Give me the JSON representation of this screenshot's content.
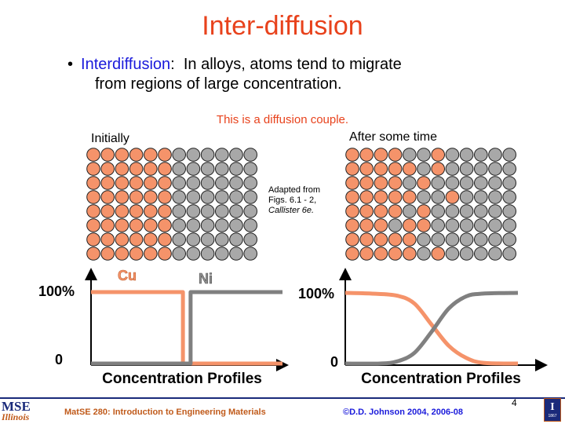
{
  "title": "Inter-diffusion",
  "bullet": {
    "marker": "•",
    "term": "Interdiffusion",
    "colon": ":",
    "text_line1": "In alloys, atoms tend to migrate",
    "text_line2": "from regions of large concentration."
  },
  "diffusion_note": "This is a diffusion couple.",
  "lattice_initial": {
    "label": "Initially",
    "colors": {
      "cu": "#f5936a",
      "ni": "#a8a8a8"
    },
    "rows": [
      "CCCCCCNNNNNN",
      "CCCCCCNNNNNN",
      "CCCCCCNNNNNN",
      "CCCCCCNNNNNN",
      "CCCCCCNNNNNN",
      "CCCCCCNNNNNN",
      "CCCCCCNNNNNN",
      "CCCCCCNNNNNN"
    ]
  },
  "lattice_after": {
    "label": "After some time",
    "rows": [
      "CCCCNNCNNNNN",
      "CCCCCNCNNNNN",
      "CCCCNCNNNNNN",
      "CCCCCNNCNNNN",
      "CCCCNCNNNNNN",
      "CCCNCCNNNNNN",
      "CCCCCNNNNNNN",
      "CCCCCNCNNNNN"
    ]
  },
  "attribution": {
    "line1": "Adapted from",
    "line2": "Figs. 6.1 - 2,",
    "line3": "Callister 6e."
  },
  "chart_data": [
    {
      "type": "line",
      "title": "Concentration Profiles",
      "y_tick_labels": [
        "100%",
        "0"
      ],
      "series": [
        {
          "name": "Cu",
          "color": "#f5936a",
          "x": [
            0,
            0.48,
            0.48,
            1
          ],
          "y": [
            100,
            100,
            0,
            0
          ]
        },
        {
          "name": "Ni",
          "color": "#808080",
          "x": [
            0,
            0.52,
            0.52,
            1
          ],
          "y": [
            0,
            0,
            100,
            100
          ]
        }
      ],
      "xlim": [
        0,
        1
      ],
      "ylim": [
        0,
        100
      ]
    },
    {
      "type": "line",
      "title": "Concentration Profiles",
      "y_tick_labels": [
        "100%",
        "0"
      ],
      "series": [
        {
          "color": "#f5936a",
          "x": [
            0,
            0.15,
            0.3,
            0.4,
            0.5,
            0.6,
            0.7,
            0.8,
            1
          ],
          "y": [
            100,
            99,
            96,
            85,
            55,
            25,
            8,
            1,
            0
          ]
        },
        {
          "color": "#808080",
          "x": [
            0,
            0.2,
            0.3,
            0.4,
            0.5,
            0.6,
            0.7,
            0.8,
            1
          ],
          "y": [
            0,
            0,
            3,
            15,
            45,
            78,
            95,
            99,
            100
          ]
        }
      ],
      "xlim": [
        0,
        1
      ],
      "ylim": [
        0,
        100
      ]
    }
  ],
  "page_number": "4",
  "footer": {
    "course": "MatSE 280: Introduction to Engineering Materials",
    "copyright": "©D.D. Johnson 2004, 2006-08",
    "logo_text": "MSE",
    "logo_subtext": "Illinois",
    "seal_letter": "I",
    "seal_year": "1867"
  }
}
